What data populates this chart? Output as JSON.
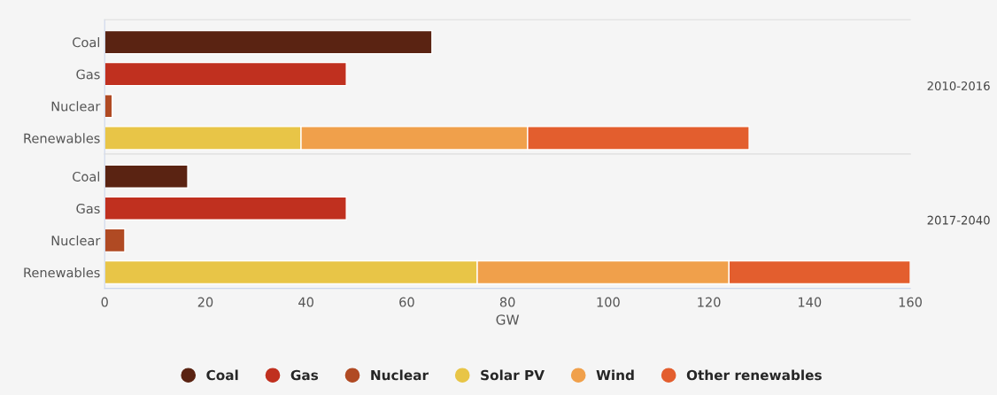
{
  "chart_data": [
    {
      "type": "bar",
      "orientation": "horizontal",
      "stacked": true,
      "y2label": "2010-2016",
      "categories": [
        "Coal",
        "Gas",
        "Nuclear",
        "Renewables"
      ],
      "xlim": [
        0,
        160
      ],
      "xticks": [
        0,
        20,
        40,
        60,
        80,
        100,
        120,
        140,
        160
      ],
      "tick_labels": "y",
      "grid": false,
      "legend": "bottom",
      "series": [
        {
          "name": "Coal",
          "color": "#5a2312",
          "values": [
            65,
            null,
            null,
            null
          ]
        },
        {
          "name": "Gas",
          "color": "#c0301f",
          "values": [
            null,
            48,
            null,
            null
          ]
        },
        {
          "name": "Nuclear",
          "color": "#b04a23",
          "values": [
            null,
            null,
            1.5,
            null
          ]
        },
        {
          "name": "Solar PV",
          "color": "#e8c547",
          "values": [
            null,
            null,
            null,
            39
          ]
        },
        {
          "name": "Wind",
          "color": "#f0a04b",
          "values": [
            null,
            null,
            null,
            45
          ]
        },
        {
          "name": "Other renewables",
          "color": "#e35e2e",
          "values": [
            null,
            null,
            null,
            44
          ]
        }
      ]
    },
    {
      "type": "bar",
      "orientation": "horizontal",
      "stacked": true,
      "y2label": "2017-2040",
      "xlabel": "GW",
      "categories": [
        "Coal",
        "Gas",
        "Nuclear",
        "Renewables"
      ],
      "xlim": [
        0,
        160
      ],
      "xticks": [
        0,
        20,
        40,
        60,
        80,
        100,
        120,
        140,
        160
      ],
      "grid": false,
      "legend": "bottom",
      "series": [
        {
          "name": "Coal",
          "color": "#5a2312",
          "values": [
            16.5,
            null,
            null,
            null
          ]
        },
        {
          "name": "Gas",
          "color": "#c0301f",
          "values": [
            null,
            48,
            null,
            null
          ]
        },
        {
          "name": "Nuclear",
          "color": "#b04a23",
          "values": [
            null,
            null,
            4,
            null
          ]
        },
        {
          "name": "Solar PV",
          "color": "#e8c547",
          "values": [
            null,
            null,
            null,
            74
          ]
        },
        {
          "name": "Wind",
          "color": "#f0a04b",
          "values": [
            null,
            null,
            null,
            50
          ]
        },
        {
          "name": "Other renewables",
          "color": "#e35e2e",
          "values": [
            null,
            null,
            null,
            36
          ]
        }
      ]
    }
  ]
}
